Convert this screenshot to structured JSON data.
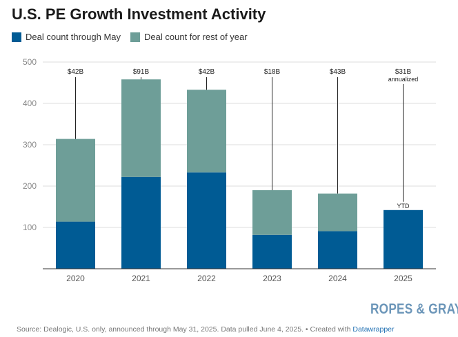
{
  "title": "U.S. PE Growth Investment Activity",
  "legend": [
    {
      "label": "Deal count through May",
      "color": "#005b94"
    },
    {
      "label": "Deal count for rest of year",
      "color": "#6e9e98"
    }
  ],
  "colors": {
    "grid": "#dddddd",
    "axis": "#333333",
    "tick_text": "#888888",
    "annotation": "#222222"
  },
  "chart_data": {
    "type": "bar",
    "stacked": true,
    "title": "U.S. PE Growth Investment Activity",
    "categories": [
      "2020",
      "2021",
      "2022",
      "2023",
      "2024",
      "2025"
    ],
    "series": [
      {
        "name": "Deal count through May",
        "values": [
          114,
          222,
          233,
          82,
          91,
          142
        ]
      },
      {
        "name": "Deal count for rest of year",
        "values": [
          200,
          236,
          200,
          108,
          91,
          0
        ]
      }
    ],
    "annotations": [
      {
        "category": "2020",
        "label": "$42B"
      },
      {
        "category": "2021",
        "label": "$91B"
      },
      {
        "category": "2022",
        "label": "$42B"
      },
      {
        "category": "2023",
        "label": "$18B"
      },
      {
        "category": "2024",
        "label": "$43B"
      },
      {
        "category": "2025",
        "label": "$31B",
        "sublabel": "annualized",
        "bar_label": "YTD"
      }
    ],
    "yticks": [
      100,
      200,
      300,
      400,
      500
    ],
    "ylim": [
      0,
      500
    ],
    "grid": true,
    "legend_position": "top-left"
  },
  "source": {
    "text": "Source: Dealogic, U.S. only, announced through May 31, 2025. Data pulled June 4, 2025. • Created with ",
    "link": "Datawrapper"
  },
  "brand": "ROPES & GRAY"
}
